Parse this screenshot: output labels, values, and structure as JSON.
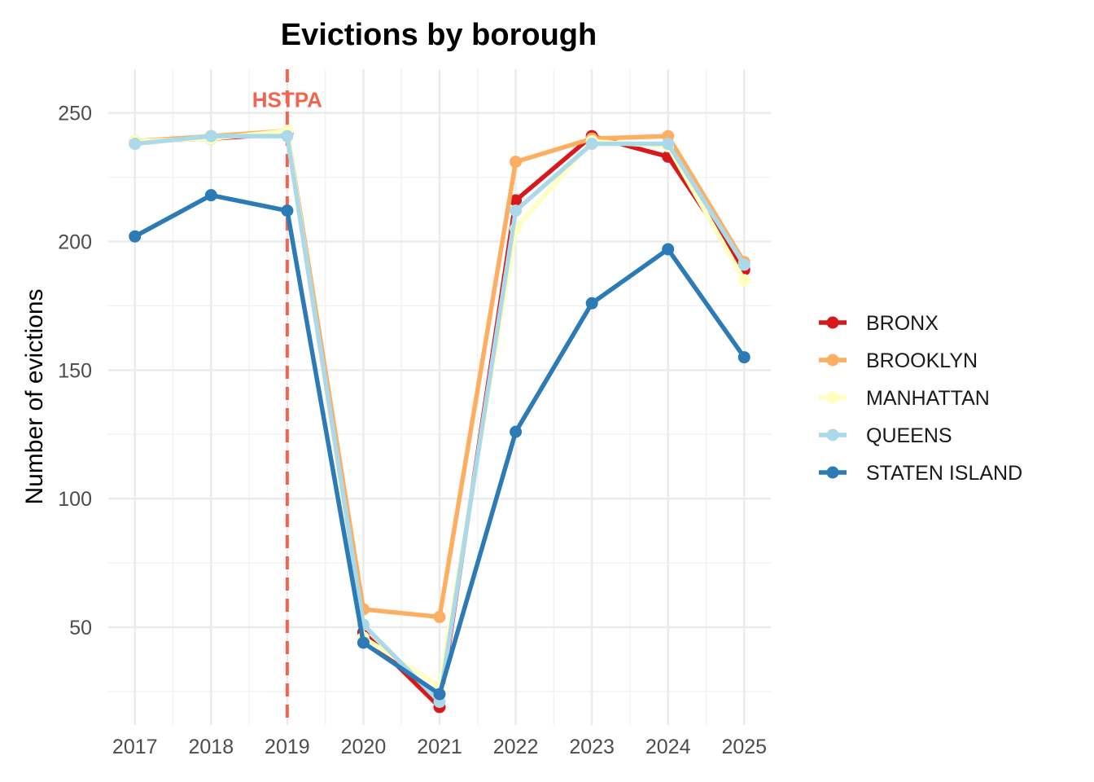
{
  "chart_data": {
    "type": "line",
    "title": "Evictions by borough",
    "xlabel": "",
    "ylabel": "Number of evictions",
    "x": [
      2017,
      2018,
      2019,
      2020,
      2021,
      2022,
      2023,
      2024,
      2025
    ],
    "x_tick_labels": [
      "2017",
      "2018",
      "2019",
      "2020",
      "2021",
      "2022",
      "2023",
      "2024",
      "2025"
    ],
    "y_ticks": [
      50,
      100,
      150,
      200,
      250
    ],
    "y_tick_labels": [
      "50",
      "100",
      "150",
      "200",
      "250"
    ],
    "xlim": [
      2016.65,
      2025.35
    ],
    "ylim": [
      12,
      267
    ],
    "grid": true,
    "legend_position": "right",
    "annotations": [
      {
        "text": "HSTPA",
        "x": 2019,
        "type": "vline",
        "color": "#f4634f"
      }
    ],
    "series": [
      {
        "name": "BRONX",
        "color": "#d7191c",
        "values": [
          239,
          240,
          242,
          48,
          19,
          216,
          241,
          233,
          189
        ]
      },
      {
        "name": "BROOKLYN",
        "color": "#fdae61",
        "values": [
          239,
          241,
          243,
          57,
          54,
          231,
          240,
          241,
          192
        ]
      },
      {
        "name": "MANHATTAN",
        "color": "#ffffbf",
        "values": [
          239,
          240,
          243,
          46,
          27,
          205,
          239,
          237,
          185
        ]
      },
      {
        "name": "QUEENS",
        "color": "#abd9e9",
        "values": [
          238,
          241,
          241,
          51,
          21,
          212,
          238,
          238,
          191
        ]
      },
      {
        "name": "STATEN ISLAND",
        "color": "#2c7bb6",
        "values": [
          202,
          218,
          212,
          44,
          24,
          126,
          176,
          197,
          155
        ]
      }
    ]
  }
}
